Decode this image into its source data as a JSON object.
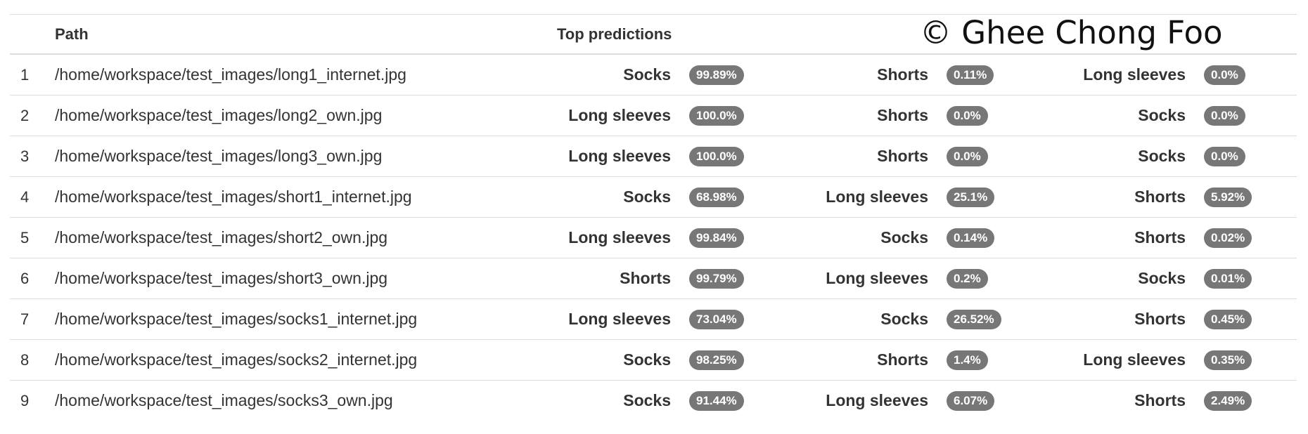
{
  "table": {
    "headers": {
      "index": "",
      "path": "Path",
      "predictions": "Top predictions"
    },
    "rows": [
      {
        "index": "1",
        "path": "/home/workspace/test_images/long1_internet.jpg",
        "p1_label": "Socks",
        "p1_pct": "99.89%",
        "p2_label": "Shorts",
        "p2_pct": "0.11%",
        "p3_label": "Long sleeves",
        "p3_pct": "0.0%"
      },
      {
        "index": "2",
        "path": "/home/workspace/test_images/long2_own.jpg",
        "p1_label": "Long sleeves",
        "p1_pct": "100.0%",
        "p2_label": "Shorts",
        "p2_pct": "0.0%",
        "p3_label": "Socks",
        "p3_pct": "0.0%"
      },
      {
        "index": "3",
        "path": "/home/workspace/test_images/long3_own.jpg",
        "p1_label": "Long sleeves",
        "p1_pct": "100.0%",
        "p2_label": "Shorts",
        "p2_pct": "0.0%",
        "p3_label": "Socks",
        "p3_pct": "0.0%"
      },
      {
        "index": "4",
        "path": "/home/workspace/test_images/short1_internet.jpg",
        "p1_label": "Socks",
        "p1_pct": "68.98%",
        "p2_label": "Long sleeves",
        "p2_pct": "25.1%",
        "p3_label": "Shorts",
        "p3_pct": "5.92%"
      },
      {
        "index": "5",
        "path": "/home/workspace/test_images/short2_own.jpg",
        "p1_label": "Long sleeves",
        "p1_pct": "99.84%",
        "p2_label": "Socks",
        "p2_pct": "0.14%",
        "p3_label": "Shorts",
        "p3_pct": "0.02%"
      },
      {
        "index": "6",
        "path": "/home/workspace/test_images/short3_own.jpg",
        "p1_label": "Shorts",
        "p1_pct": "99.79%",
        "p2_label": "Long sleeves",
        "p2_pct": "0.2%",
        "p3_label": "Socks",
        "p3_pct": "0.01%"
      },
      {
        "index": "7",
        "path": "/home/workspace/test_images/socks1_internet.jpg",
        "p1_label": "Long sleeves",
        "p1_pct": "73.04%",
        "p2_label": "Socks",
        "p2_pct": "26.52%",
        "p3_label": "Shorts",
        "p3_pct": "0.45%"
      },
      {
        "index": "8",
        "path": "/home/workspace/test_images/socks2_internet.jpg",
        "p1_label": "Socks",
        "p1_pct": "98.25%",
        "p2_label": "Shorts",
        "p2_pct": "1.4%",
        "p3_label": "Long sleeves",
        "p3_pct": "0.35%"
      },
      {
        "index": "9",
        "path": "/home/workspace/test_images/socks3_own.jpg",
        "p1_label": "Socks",
        "p1_pct": "91.44%",
        "p2_label": "Long sleeves",
        "p2_pct": "6.07%",
        "p3_label": "Shorts",
        "p3_pct": "2.49%"
      }
    ]
  },
  "watermark": "© Ghee Chong Foo",
  "colors": {
    "badge_bg": "#777777",
    "badge_text": "#ffffff",
    "row_border": "#dddddd",
    "text": "#333333"
  }
}
